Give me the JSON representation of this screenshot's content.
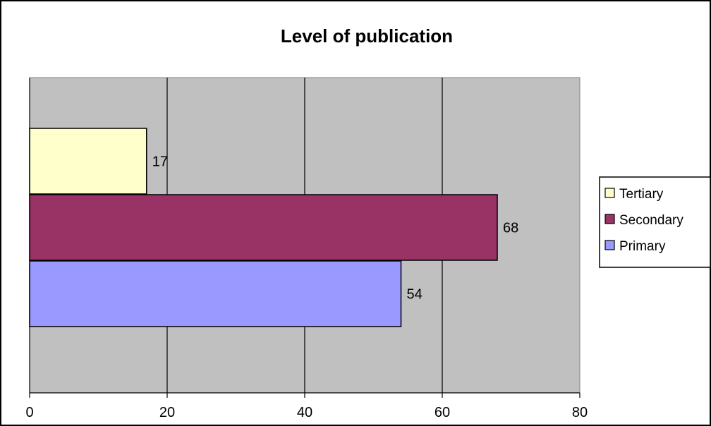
{
  "chart_data": {
    "type": "bar",
    "orientation": "horizontal",
    "title": "Level of publication",
    "xlabel": "",
    "ylabel": "",
    "xlim": [
      0,
      80
    ],
    "ticks": [
      "0",
      "20",
      "40",
      "60",
      "80"
    ],
    "tick_values": [
      0,
      20,
      40,
      60,
      80
    ],
    "grid": true,
    "legend_position": "right",
    "categories": [
      "Tertiary",
      "Secondary",
      "Primary"
    ],
    "series": [
      {
        "name": "Tertiary",
        "value": 17,
        "label": "17",
        "color": "#FFFFCC"
      },
      {
        "name": "Secondary",
        "value": 68,
        "label": "68",
        "color": "#993366"
      },
      {
        "name": "Primary",
        "value": 54,
        "label": "54",
        "color": "#9999FF"
      }
    ],
    "plot_background": "#C0C0C0"
  }
}
